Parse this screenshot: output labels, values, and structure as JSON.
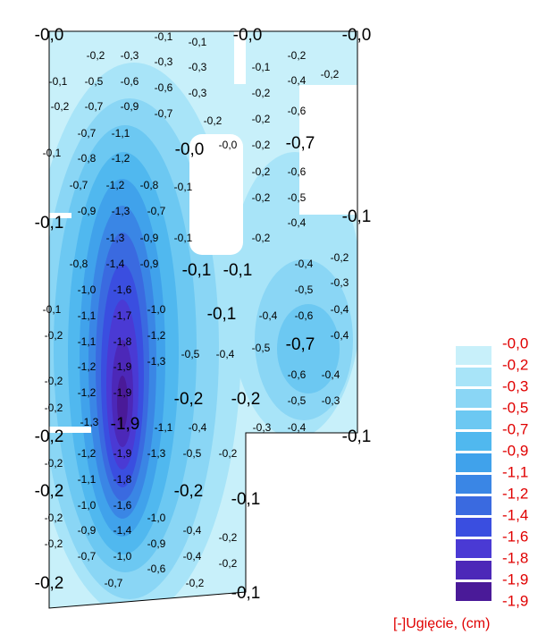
{
  "legend": {
    "title": "[-]Ugięcie, (cm)",
    "levels": [
      "-0,0",
      "-0,2",
      "-0,3",
      "-0,5",
      "-0,7",
      "-0,9",
      "-1,1",
      "-1,2",
      "-1,4",
      "-1,6",
      "-1,8",
      "-1,9",
      "-1,9"
    ]
  },
  "labels": [
    "-0,0",
    "-0,1",
    "-0,1",
    "-0,0",
    "-0,0",
    "-0,2",
    "-0,3",
    "-0,3",
    "-0,3",
    "-0,1",
    "-0,2",
    "-0,2",
    "-0,4",
    "-0,1",
    "-0,5",
    "-0,6",
    "-0,6",
    "-0,3",
    "-0,2",
    "-0,2",
    "-0,7",
    "-0,9",
    "-0,7",
    "-0,2",
    "-0,2",
    "-0,6",
    "-0,7",
    "-1,1",
    "-0,0",
    "-0,0",
    "-0,2",
    "-0,7",
    "-0,1",
    "-0,8",
    "-1,2",
    "-0,2",
    "-0,6",
    "-0,7",
    "-1,2",
    "-0,8",
    "-0,1",
    "-0,2",
    "-0,5",
    "-0,9",
    "-1,3",
    "-0,7",
    "-0,1",
    "-0,4",
    "-0,1",
    "-1,3",
    "-0,9",
    "-0,1",
    "-0,2",
    "-0,2",
    "-0,8",
    "-1,4",
    "-0,9",
    "-0,4",
    "-0,1",
    "-0,1",
    "-0,3",
    "-1,0",
    "-1,6",
    "-0,5",
    "-0,1",
    "-1,0",
    "-0,4",
    "-1,1",
    "-1,7",
    "-0,1",
    "-0,4",
    "-0,6",
    "-0,2",
    "-0,4",
    "-1,1",
    "-1,8",
    "-1,2",
    "-0,5",
    "-0,7",
    "-0,5",
    "-0,4",
    "-1,3",
    "-1,2",
    "-1,9",
    "-0,6",
    "-0,4",
    "-0,2",
    "-1,2",
    "-1,9",
    "-0,2",
    "-0,2",
    "-0,5",
    "-0,3",
    "-0,2",
    "-1,3",
    "-1,9",
    "-1,1",
    "-0,4",
    "-0,3",
    "-0,4",
    "-0,2",
    "-0,1",
    "-1,2",
    "-1,9",
    "-1,3",
    "-0,5",
    "-0,2",
    "-0,2",
    "-1,1",
    "-1,8",
    "-0,2",
    "-0,2",
    "-0,1",
    "-1,0",
    "-1,6",
    "-0,2",
    "-1,0",
    "-0,9",
    "-1,4",
    "-0,4",
    "-0,2",
    "-0,2",
    "-0,9",
    "-0,7",
    "-1,0",
    "-0,4",
    "-0,2",
    "-0,6",
    "-0,2",
    "-0,7",
    "-0,2",
    "-0,1"
  ]
}
